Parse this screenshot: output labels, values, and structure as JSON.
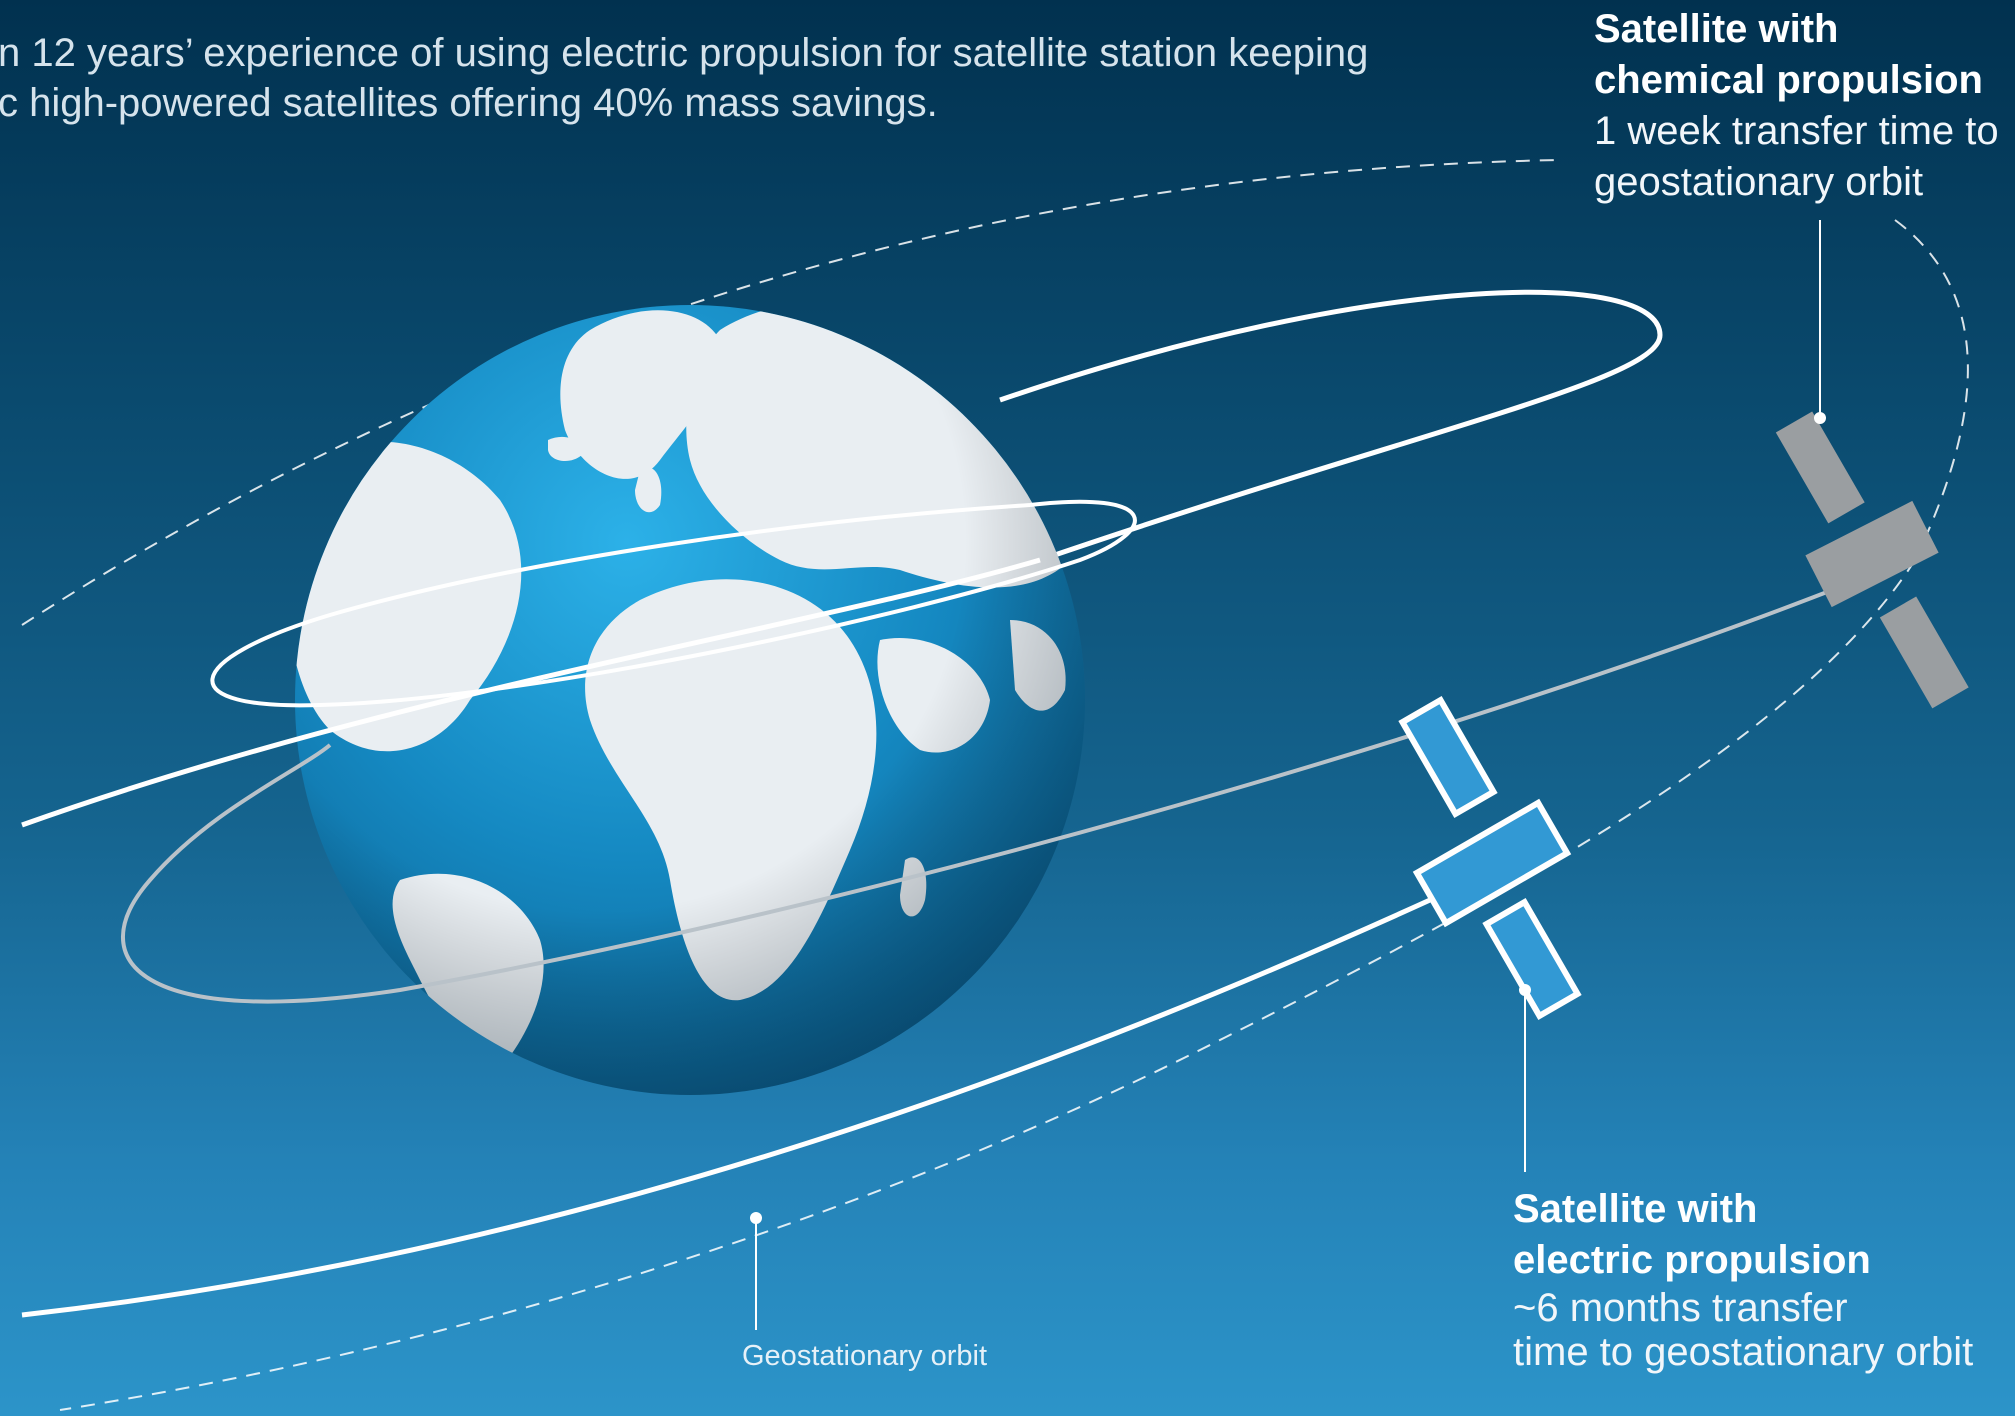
{
  "intro": {
    "line1": "n 12 years’ experience of using electric propulsion for satellite station keeping",
    "line2": "c high-powered satellites offering 40% mass savings."
  },
  "satellites": {
    "chemical": {
      "title_line1": "Satellite with",
      "title_line2": "chemical propulsion",
      "desc_line1": "1 week transfer time to",
      "desc_line2": "geostationary orbit",
      "color": "#9a9ea1"
    },
    "electric": {
      "title_line1": "Satellite with",
      "title_line2": "electric propulsion",
      "desc_line1": "~6 months transfer",
      "desc_line2": "time to geostationary orbit",
      "color": "#3299d4"
    }
  },
  "orbit_label": "Geostationary orbit",
  "colors": {
    "background_top": "#01314f",
    "background_bottom": "#2c94c9",
    "ocean": "#1a8fc8",
    "land": "#e8eef2",
    "orbit_line": "#ffffff",
    "transfer_orbit": "#b9c2c9"
  }
}
